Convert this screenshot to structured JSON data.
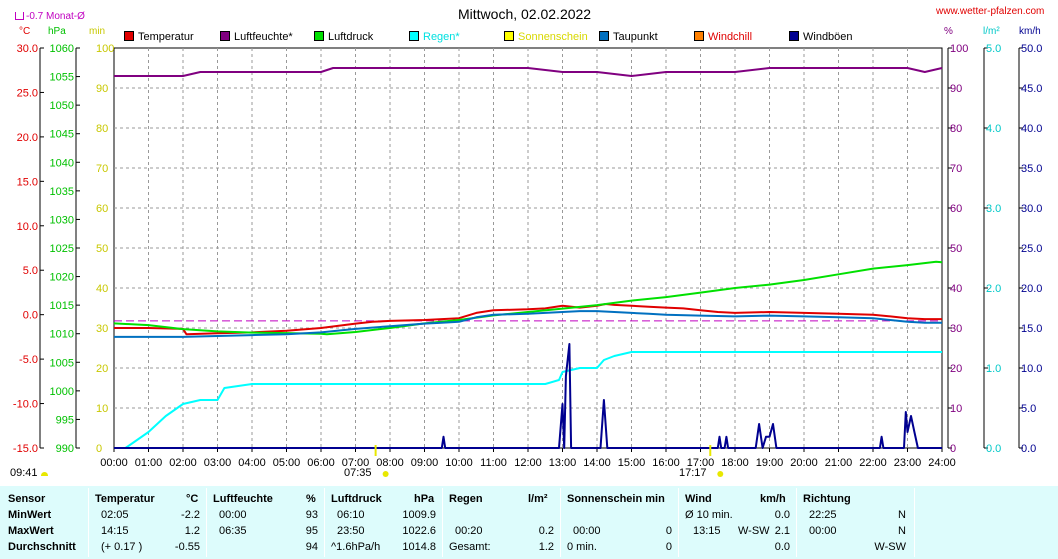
{
  "header": {
    "title": "Mittwoch, 02.02.2022",
    "site": "www.wetter-pfalzen.com",
    "monthly_avg": "-0.7 Monat-Ø",
    "left_units": [
      "°C",
      "hPa",
      "min"
    ],
    "right_units": [
      "%",
      "l/m²",
      "km/h"
    ],
    "sunrise_time": "07:35",
    "sunset_time": "17:17",
    "sunshine_duration": "09:41"
  },
  "legend": [
    {
      "label": "Temperatur",
      "color": "#e00000"
    },
    {
      "label": "Luftfeuchte*",
      "color": "#800080"
    },
    {
      "label": "Luftdruck",
      "color": "#00e000"
    },
    {
      "label": "Regen*",
      "color": "#00ffff"
    },
    {
      "label": "Sonnenschein",
      "color": "#ffff00"
    },
    {
      "label": "Taupunkt",
      "color": "#0070c0"
    },
    {
      "label": "Windchill",
      "color": "#ff8000"
    },
    {
      "label": "Windböen",
      "color": "#000090"
    }
  ],
  "chart_data": {
    "type": "line",
    "title": "Mittwoch, 02.02.2022",
    "x_ticks": [
      "00:00",
      "01:00",
      "02:00",
      "03:00",
      "04:00",
      "05:00",
      "06:00",
      "07:00",
      "08:00",
      "09:00",
      "10:00",
      "11:00",
      "12:00",
      "13:00",
      "14:00",
      "15:00",
      "16:00",
      "17:00",
      "18:00",
      "19:00",
      "20:00",
      "21:00",
      "22:00",
      "23:00",
      "24:00"
    ],
    "xlim_hours": [
      0,
      24
    ],
    "grid": true,
    "axes": {
      "temperature_c": {
        "range": [
          -15,
          30
        ],
        "ticks": [
          "30.0",
          "25.0",
          "20.0",
          "15.0",
          "10.0",
          "5.0",
          "0.0",
          "-5.0",
          "-10.0",
          "-15.0"
        ],
        "color": "#e00000"
      },
      "pressure_hpa": {
        "range": [
          990,
          1060
        ],
        "ticks": [
          "1060",
          "1055",
          "1050",
          "1045",
          "1040",
          "1035",
          "1030",
          "1025",
          "1020",
          "1015",
          "1010",
          "1005",
          "1000",
          "995",
          "990"
        ],
        "color": "#00c000"
      },
      "sunshine_min": {
        "range": [
          0,
          100
        ],
        "ticks": [
          "100",
          "90",
          "80",
          "70",
          "60",
          "50",
          "40",
          "30",
          "20",
          "10",
          "0"
        ],
        "color": "#c8c800"
      },
      "humidity_pct": {
        "range": [
          0,
          100
        ],
        "ticks": [
          "100",
          "90",
          "80",
          "70",
          "60",
          "50",
          "40",
          "30",
          "20",
          "10",
          "0"
        ],
        "color": "#800080"
      },
      "rain_lm2": {
        "range": [
          0,
          5
        ],
        "ticks": [
          "5.0",
          "4.0",
          "3.0",
          "2.0",
          "1.0",
          "0.0"
        ],
        "color": "#00c8c8"
      },
      "wind_kmh": {
        "range": [
          0,
          50
        ],
        "ticks": [
          "50.0",
          "45.0",
          "40.0",
          "35.0",
          "30.0",
          "25.0",
          "20.0",
          "15.0",
          "10.0",
          "5.0",
          "0.0"
        ],
        "color": "#000090"
      }
    },
    "monthly_avg_temp": -0.7,
    "series": [
      {
        "name": "Temperatur",
        "axis": "temperature_c",
        "color": "#e00000",
        "x": [
          0,
          1,
          2,
          2.1,
          3,
          4,
          5,
          6,
          7,
          7.5,
          8,
          9,
          9.5,
          10,
          10.5,
          11,
          12,
          12.5,
          13,
          13.5,
          14,
          14.25,
          14.5,
          15,
          15.5,
          16,
          16.5,
          17,
          17.5,
          18,
          19,
          20,
          21,
          22,
          22.5,
          23,
          23.5,
          24
        ],
        "y": [
          -1.5,
          -1.5,
          -1.6,
          -2.2,
          -2.1,
          -2.0,
          -1.8,
          -1.5,
          -1.0,
          -0.8,
          -0.7,
          -0.6,
          -0.5,
          -0.4,
          0.2,
          0.5,
          0.6,
          0.7,
          1.0,
          0.8,
          1.0,
          1.2,
          1.1,
          1.0,
          0.9,
          0.8,
          0.7,
          0.5,
          0.3,
          0.2,
          0.3,
          0.2,
          0.1,
          0.0,
          -0.2,
          -0.4,
          -0.5,
          -0.5
        ]
      },
      {
        "name": "Luftfeuchte*",
        "axis": "humidity_pct",
        "color": "#800080",
        "x": [
          0,
          1,
          2,
          2.5,
          3,
          4,
          5,
          6,
          6.35,
          7,
          8,
          9,
          10,
          11,
          12,
          13,
          14,
          15,
          16,
          17,
          18,
          19,
          20,
          21,
          22,
          23,
          23.5,
          24
        ],
        "y": [
          93,
          93,
          93,
          94,
          94,
          94,
          94,
          94,
          95,
          95,
          95,
          95,
          95,
          95,
          95,
          94,
          94,
          93,
          94,
          94,
          94,
          95,
          95,
          95,
          95,
          95,
          94,
          95
        ]
      },
      {
        "name": "Luftdruck",
        "axis": "pressure_hpa",
        "color": "#00e000",
        "x": [
          0,
          1,
          2,
          3,
          4,
          5,
          6,
          6.17,
          7,
          8,
          9,
          10,
          11,
          12,
          13,
          14,
          15,
          16,
          17,
          18,
          19,
          20,
          21,
          22,
          23,
          23.83,
          24
        ],
        "y": [
          1011.8,
          1011.5,
          1010.8,
          1010.4,
          1010.2,
          1010.1,
          1010.0,
          1009.9,
          1010.3,
          1011.0,
          1011.8,
          1012.4,
          1013.2,
          1013.8,
          1014.4,
          1015.0,
          1015.8,
          1016.4,
          1017.2,
          1018.0,
          1018.6,
          1019.4,
          1020.4,
          1021.4,
          1022.0,
          1022.6,
          1022.5
        ]
      },
      {
        "name": "Regen*",
        "axis": "rain_lm2",
        "color": "#00ffff",
        "x": [
          0,
          0.33,
          0.5,
          1,
          1.5,
          2,
          2.5,
          3,
          3.2,
          4,
          5,
          6,
          7,
          8,
          9,
          10,
          11,
          12,
          12.5,
          12.9,
          13,
          13.5,
          14,
          14.2,
          14.5,
          15,
          16,
          17,
          18,
          19,
          20,
          21,
          22,
          23,
          24
        ],
        "y": [
          0,
          0,
          0.05,
          0.2,
          0.4,
          0.55,
          0.6,
          0.6,
          0.75,
          0.8,
          0.8,
          0.8,
          0.8,
          0.8,
          0.8,
          0.8,
          0.8,
          0.8,
          0.8,
          0.85,
          0.95,
          1.0,
          1.0,
          1.1,
          1.15,
          1.2,
          1.2,
          1.2,
          1.2,
          1.2,
          1.2,
          1.2,
          1.2,
          1.2,
          1.2
        ]
      },
      {
        "name": "Taupunkt",
        "axis": "temperature_c",
        "color": "#0070c0",
        "x": [
          0,
          1,
          2,
          3,
          4,
          5,
          6,
          7,
          8,
          9,
          9.5,
          10,
          10.5,
          11,
          12,
          13,
          13.5,
          14,
          14.5,
          15,
          15.5,
          16,
          17,
          18,
          19,
          20,
          21,
          22,
          22.5,
          23,
          23.5,
          24
        ],
        "y": [
          -2.5,
          -2.5,
          -2.5,
          -2.4,
          -2.3,
          -2.2,
          -2.0,
          -1.6,
          -1.3,
          -1.0,
          -0.9,
          -0.8,
          -0.3,
          0.0,
          0.1,
          0.3,
          0.4,
          0.4,
          0.3,
          0.2,
          0.1,
          0.0,
          -0.1,
          -0.2,
          -0.1,
          -0.2,
          -0.3,
          -0.4,
          -0.6,
          -0.8,
          -0.9,
          -0.9
        ]
      },
      {
        "name": "Windböen",
        "axis": "wind_kmh",
        "color": "#000090",
        "x": [
          0,
          9.5,
          9.55,
          9.6,
          10,
          12.9,
          13.0,
          13.05,
          13.1,
          13.2,
          13.25,
          13.3,
          14.1,
          14.2,
          14.3,
          17.5,
          17.55,
          17.6,
          17.7,
          17.75,
          17.8,
          18.6,
          18.7,
          18.8,
          18.9,
          19.0,
          19.1,
          19.2,
          22.2,
          22.25,
          22.3,
          22.9,
          22.95,
          23.0,
          23.1,
          23.2,
          23.3,
          23.4,
          24
        ],
        "y": [
          0,
          0,
          1.4,
          0,
          0,
          0,
          5.5,
          0,
          9.0,
          13.0,
          0,
          0,
          0,
          6.0,
          0,
          0,
          1.4,
          0,
          0,
          1.4,
          0,
          0,
          3.0,
          0,
          1.4,
          1.4,
          3.0,
          0,
          0,
          1.4,
          0,
          0,
          4.5,
          2.0,
          4.0,
          2.0,
          0,
          0,
          0
        ]
      }
    ]
  },
  "stats": {
    "headers": {
      "sensor": "Sensor",
      "temperature": "Temperatur",
      "temperature_unit": "°C",
      "humidity": "Luftfeuchte",
      "humidity_unit": "%",
      "pressure": "Luftdruck",
      "pressure_unit": "hPa",
      "rain": "Regen",
      "rain_unit": "l/m²",
      "sunshine": "Sonnenschein min",
      "wind": "Wind",
      "wind_unit": "km/h",
      "direction": "Richtung"
    },
    "rows": [
      {
        "label": "MinWert",
        "temp_time": "02:05",
        "temp_val": "-2.2",
        "hum_time": "00:00",
        "hum_val": "93",
        "press_time": "06:10",
        "press_val": "1009.9",
        "rain_time": "",
        "rain_val": "",
        "sun_time": "",
        "sun_val": "",
        "wind_time": "Ø 10 min.",
        "wind_dir": "",
        "wind_val": "0.0",
        "dir_time": "22:25",
        "dir_val": "N"
      },
      {
        "label": "MaxWert",
        "temp_time": "14:15",
        "temp_val": "1.2",
        "hum_time": "06:35",
        "hum_val": "95",
        "press_time": "23:50",
        "press_val": "1022.6",
        "rain_time": "00:20",
        "rain_val": "0.2",
        "sun_time": "00:00",
        "sun_val": "0",
        "wind_time": "13:15",
        "wind_dir": "W-SW",
        "wind_val": "2.1",
        "dir_time": "00:00",
        "dir_val": "N"
      },
      {
        "label": "Durchschnitt",
        "temp_time": "(+ 0.17 )",
        "temp_val": "-0.55",
        "hum_time": "",
        "hum_val": "94",
        "press_time": "^1.6hPa/h",
        "press_val": "1014.8",
        "rain_time": "Gesamt:",
        "rain_val": "1.2",
        "sun_time": "0 min.",
        "sun_val": "0",
        "wind_time": "",
        "wind_dir": "",
        "wind_val": "0.0",
        "dir_time": "",
        "dir_val": "W-SW"
      }
    ]
  }
}
